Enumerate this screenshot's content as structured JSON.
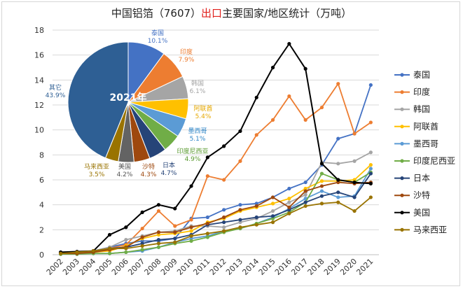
{
  "chart_data": [
    {
      "type": "line",
      "title_prefix": "中国铝箔（7607）",
      "title_highlight": "出口",
      "title_suffix": "主要国家/地区统计（万吨）",
      "x": [
        "2002",
        "2003",
        "2004",
        "2005",
        "2006",
        "2007",
        "2008",
        "2009",
        "2010",
        "2011",
        "2012",
        "2013",
        "2014",
        "2015",
        "2016",
        "2017",
        "2018",
        "2019",
        "2020",
        "2021"
      ],
      "ylim": [
        0,
        18
      ],
      "yticks": [
        0,
        2,
        4,
        6,
        8,
        10,
        12,
        14,
        16,
        18
      ],
      "grid": true,
      "legend": "right",
      "series": [
        {
          "name": "泰国",
          "color": "#4472c4",
          "values": [
            0.1,
            0.2,
            0.3,
            0.6,
            0.9,
            1.1,
            1.1,
            1.3,
            2.9,
            3.0,
            3.6,
            4.0,
            4.1,
            4.6,
            5.3,
            5.8,
            7.2,
            9.3,
            9.7,
            13.6
          ]
        },
        {
          "name": "印度",
          "color": "#ed7d31",
          "values": [
            0.1,
            0.1,
            0.2,
            0.5,
            0.8,
            2.1,
            3.5,
            2.3,
            2.8,
            6.3,
            6.0,
            7.5,
            9.6,
            10.8,
            12.7,
            10.8,
            11.8,
            13.7,
            9.7,
            10.6
          ]
        },
        {
          "name": "韩国",
          "color": "#a5a5a5",
          "values": [
            0.1,
            0.2,
            0.3,
            0.6,
            1.2,
            1.5,
            1.8,
            1.9,
            2.3,
            2.3,
            2.2,
            2.6,
            2.9,
            3.5,
            4.2,
            4.8,
            7.4,
            7.3,
            7.5,
            8.2
          ]
        },
        {
          "name": "阿联酋",
          "color": "#ffc000",
          "values": [
            0.1,
            0.1,
            0.2,
            0.3,
            0.7,
            1.3,
            1.6,
            1.7,
            1.9,
            2.6,
            2.9,
            3.5,
            3.8,
            4.1,
            4.5,
            5.3,
            5.9,
            5.9,
            6.0,
            7.2
          ]
        },
        {
          "name": "墨西哥",
          "color": "#5b9bd5",
          "values": [
            0.05,
            0.05,
            0.1,
            0.1,
            0.2,
            0.3,
            0.6,
            1.0,
            1.3,
            1.5,
            1.9,
            2.1,
            2.5,
            3.0,
            3.7,
            4.5,
            5.1,
            4.6,
            4.7,
            6.9
          ]
        },
        {
          "name": "印度尼西亚",
          "color": "#70ad47",
          "values": [
            0.05,
            0.05,
            0.1,
            0.1,
            0.2,
            0.4,
            0.6,
            0.9,
            1.1,
            1.4,
            1.8,
            2.1,
            2.5,
            2.9,
            3.4,
            4.2,
            6.5,
            6.0,
            5.8,
            6.6
          ]
        },
        {
          "name": "日本",
          "color": "#264478",
          "values": [
            0.2,
            0.2,
            0.3,
            0.5,
            0.6,
            0.9,
            1.2,
            1.3,
            1.6,
            2.4,
            2.6,
            2.8,
            3.0,
            3.1,
            3.6,
            4.2,
            4.7,
            5.0,
            4.6,
            6.5
          ]
        },
        {
          "name": "沙特",
          "color": "#9e480e",
          "values": [
            0.1,
            0.1,
            0.2,
            0.4,
            0.6,
            1.4,
            1.8,
            1.8,
            2.2,
            2.5,
            3.0,
            3.6,
            3.9,
            4.6,
            3.8,
            5.1,
            5.5,
            5.8,
            5.7,
            5.8
          ]
        },
        {
          "name": "美国",
          "color": "#000000",
          "values": [
            0.2,
            0.25,
            0.3,
            1.6,
            2.2,
            3.4,
            4.0,
            3.7,
            5.5,
            7.8,
            8.7,
            9.9,
            12.6,
            15.0,
            16.9,
            14.9,
            7.3,
            6.0,
            5.8,
            5.7
          ]
        },
        {
          "name": "马来西亚",
          "color": "#997300",
          "values": [
            0.1,
            0.2,
            0.3,
            0.5,
            0.5,
            0.7,
            0.9,
            1.0,
            1.5,
            1.7,
            1.9,
            2.2,
            2.4,
            2.6,
            3.3,
            3.9,
            4.1,
            4.2,
            3.5,
            4.6
          ]
        }
      ]
    },
    {
      "type": "pie",
      "center_label": "2021年",
      "slices": [
        {
          "name": "泰国",
          "pct": "10.1%",
          "value": 10.1,
          "color": "#4472c4",
          "label_color": "#4472c4"
        },
        {
          "name": "印度",
          "pct": "7.9%",
          "value": 7.9,
          "color": "#ed7d31",
          "label_color": "#ed7d31"
        },
        {
          "name": "韩国",
          "pct": "6.1%",
          "value": 6.1,
          "color": "#a5a5a5",
          "label_color": "#a5a5a5"
        },
        {
          "name": "阿联酋",
          "pct": "5.4%",
          "value": 5.4,
          "color": "#ffc000",
          "label_color": "#e6a800"
        },
        {
          "name": "墨西哥",
          "pct": "5.1%",
          "value": 5.1,
          "color": "#5b9bd5",
          "label_color": "#2e86c8"
        },
        {
          "name": "印度尼西亚",
          "pct": "4.9%",
          "value": 4.9,
          "color": "#70ad47",
          "label_color": "#5a9a30"
        },
        {
          "name": "日本",
          "pct": "4.7%",
          "value": 4.7,
          "color": "#264478",
          "label_color": "#264478"
        },
        {
          "name": "沙特",
          "pct": "4.3%",
          "value": 4.3,
          "color": "#9e480e",
          "label_color": "#9e480e"
        },
        {
          "name": "美国",
          "pct": "4.2%",
          "value": 4.2,
          "color": "#636363",
          "label_color": "#555555"
        },
        {
          "name": "马来西亚",
          "pct": "3.5%",
          "value": 3.5,
          "color": "#997300",
          "label_color": "#997300"
        },
        {
          "name": "其它",
          "pct": "43.9%",
          "value": 43.9,
          "color": "#2e5f94",
          "label_color": "#2e5f94"
        }
      ]
    }
  ]
}
